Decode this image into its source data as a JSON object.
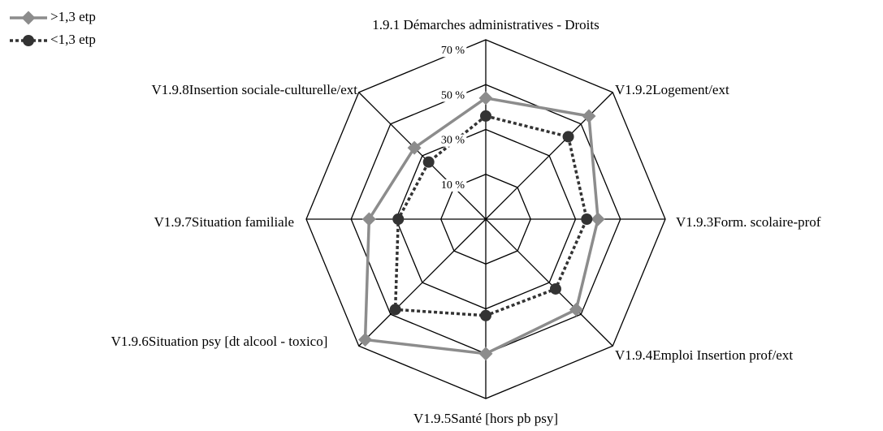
{
  "chart_data": {
    "type": "radar",
    "categories": [
      "1.9.1 Démarches administratives - Droits",
      "V1.9.2Logement/ext",
      "V1.9.3Form. scolaire-prof",
      "V1.9.4Emploi Insertion prof/ext",
      "V1.9.5Santé [hors pb psy]",
      "V1.9.6Situation psy [dt alcool - toxico]",
      "V1.9.7Situation familiale",
      "V1.9.8Insertion sociale-culturelle/ext"
    ],
    "series": [
      {
        "name": ">1,3 etp",
        "color": "#8c8c8c",
        "values": [
          44,
          55,
          40,
          47,
          50,
          66,
          42,
          35
        ]
      },
      {
        "name": "<1,3 etp",
        "color": "#333333",
        "values": [
          36,
          42,
          35,
          34,
          33,
          47,
          29,
          26
        ]
      }
    ],
    "ylim": [
      -10,
      70
    ],
    "yticks": [
      {
        "value": 10,
        "label": "10 %"
      },
      {
        "value": 30,
        "label": "30 %"
      },
      {
        "value": 50,
        "label": "50 %"
      },
      {
        "value": 70,
        "label": "70 %"
      }
    ]
  }
}
